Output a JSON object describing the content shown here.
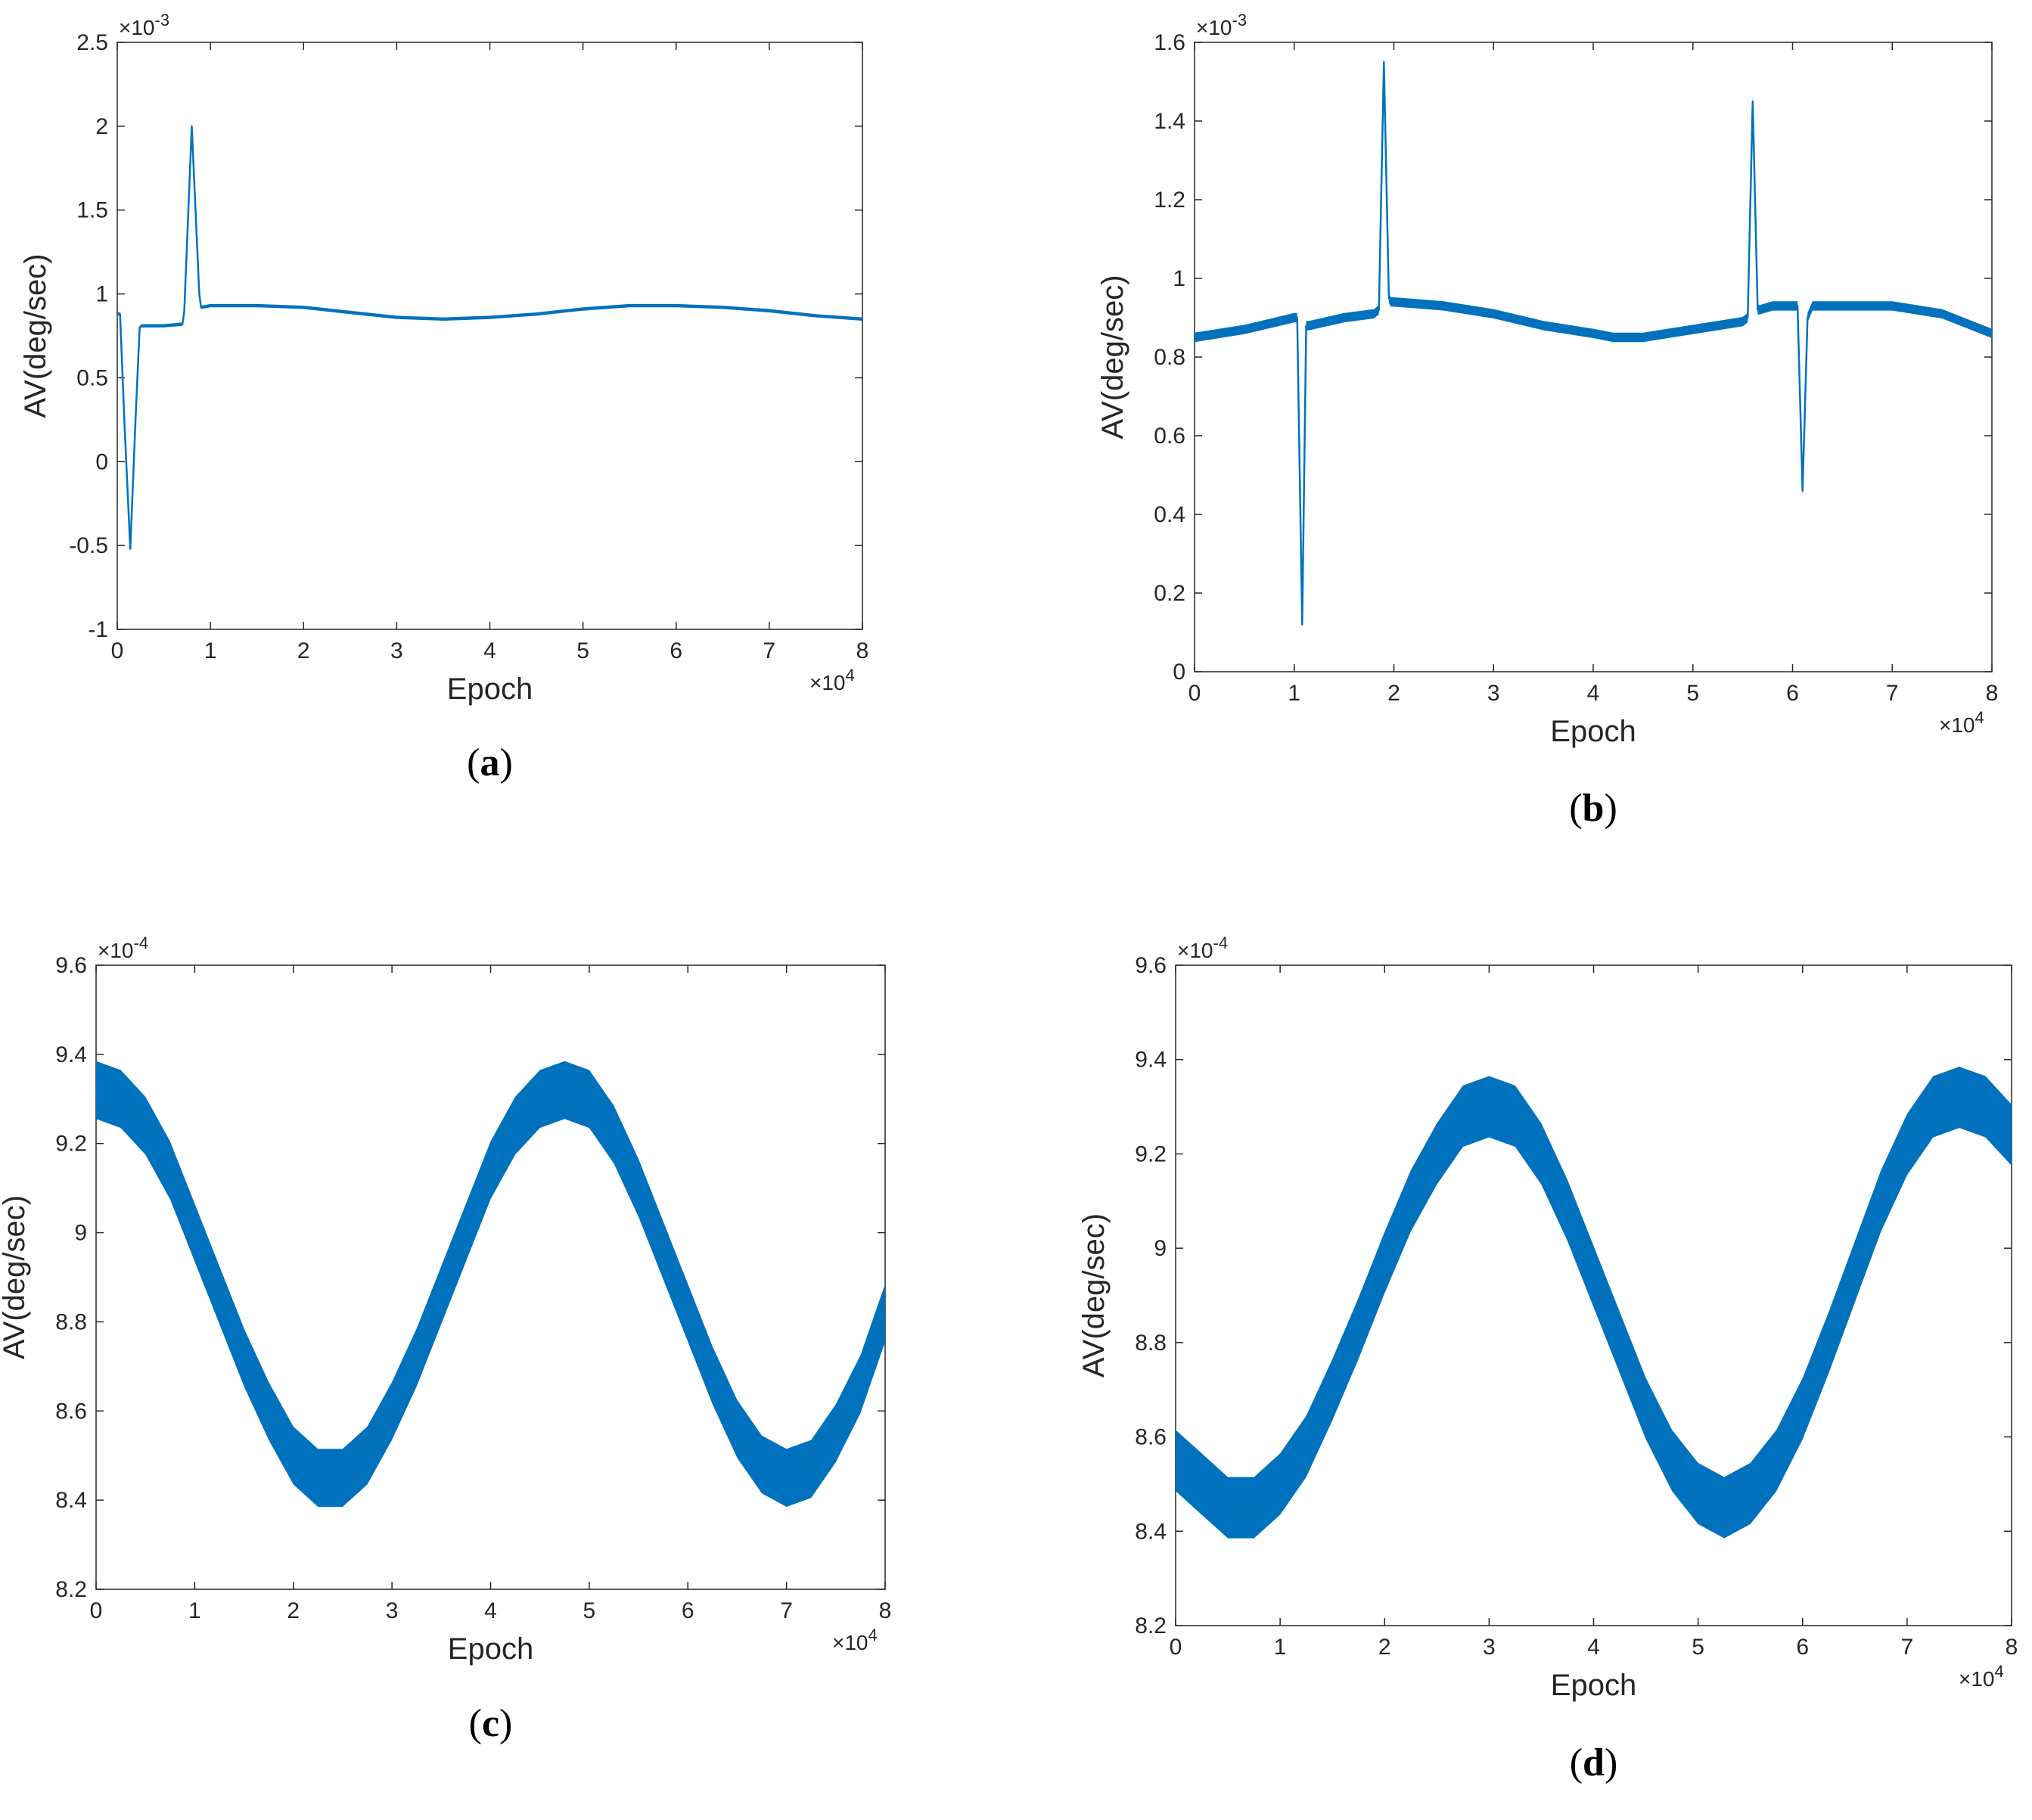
{
  "chart_data": [
    {
      "type": "line",
      "caption_letter": "a",
      "xlabel": "Epoch",
      "ylabel": "AV(deg/sec)",
      "x_multiplier": "×10",
      "x_multiplier_exp": "4",
      "y_multiplier": "×10",
      "y_multiplier_exp": "-3",
      "xlim": [
        0,
        8
      ],
      "ylim": [
        -1,
        2.5
      ],
      "xticks": [
        0,
        1,
        2,
        3,
        4,
        5,
        6,
        7,
        8
      ],
      "yticks": [
        -1,
        -0.5,
        0,
        0.5,
        1,
        1.5,
        2,
        2.5
      ],
      "series": [
        {
          "color": "#0072BD",
          "band": 0.01,
          "x": [
            0,
            0.03,
            0.08,
            0.14,
            0.2,
            0.24,
            0.26,
            0.5,
            0.7,
            0.72,
            0.8,
            0.88,
            0.9,
            1.0,
            1.5,
            2.0,
            2.5,
            3.0,
            3.5,
            4.0,
            4.5,
            5.0,
            5.5,
            6.0,
            6.5,
            7.0,
            7.5,
            8.0
          ],
          "y": [
            0.88,
            0.88,
            0.2,
            -0.52,
            0.3,
            0.8,
            0.81,
            0.81,
            0.82,
            0.9,
            2.0,
            1.0,
            0.92,
            0.93,
            0.93,
            0.92,
            0.89,
            0.86,
            0.85,
            0.86,
            0.88,
            0.91,
            0.93,
            0.93,
            0.92,
            0.9,
            0.87,
            0.85
          ]
        }
      ]
    },
    {
      "type": "line",
      "caption_letter": "b",
      "xlabel": "Epoch",
      "ylabel": "AV(deg/sec)",
      "x_multiplier": "×10",
      "x_multiplier_exp": "4",
      "y_multiplier": "×10",
      "y_multiplier_exp": "-3",
      "xlim": [
        0,
        8
      ],
      "ylim": [
        0,
        1.6
      ],
      "xticks": [
        0,
        1,
        2,
        3,
        4,
        5,
        6,
        7,
        8
      ],
      "yticks": [
        0,
        0.2,
        0.4,
        0.6,
        0.8,
        1,
        1.2,
        1.4,
        1.6
      ],
      "series": [
        {
          "color": "#0072BD",
          "band": 0.012,
          "x": [
            0,
            0.5,
            1.0,
            1.03,
            1.08,
            1.12,
            1.15,
            1.5,
            1.8,
            1.85,
            1.9,
            1.95,
            1.97,
            2.0,
            2.5,
            3.0,
            3.5,
            4.0,
            4.2,
            4.5,
            5.0,
            5.5,
            5.55,
            5.6,
            5.65,
            5.67,
            5.8,
            6.0,
            6.05,
            6.1,
            6.15,
            6.2,
            6.5,
            7.0,
            7.5,
            8.0
          ],
          "y": [
            0.85,
            0.87,
            0.9,
            0.9,
            0.12,
            0.88,
            0.88,
            0.9,
            0.91,
            0.92,
            1.55,
            0.95,
            0.94,
            0.94,
            0.93,
            0.91,
            0.88,
            0.86,
            0.85,
            0.85,
            0.87,
            0.89,
            0.9,
            1.45,
            0.92,
            0.92,
            0.93,
            0.93,
            0.93,
            0.46,
            0.9,
            0.93,
            0.93,
            0.93,
            0.91,
            0.86
          ]
        }
      ]
    },
    {
      "type": "line",
      "caption_letter": "c",
      "xlabel": "Epoch",
      "ylabel": "AV(deg/sec)",
      "x_multiplier": "×10",
      "x_multiplier_exp": "4",
      "y_multiplier": "×10",
      "y_multiplier_exp": "-4",
      "xlim": [
        0,
        8
      ],
      "ylim": [
        8.2,
        9.6
      ],
      "xticks": [
        0,
        1,
        2,
        3,
        4,
        5,
        6,
        7,
        8
      ],
      "yticks": [
        8.2,
        8.4,
        8.6,
        8.8,
        9,
        9.2,
        9.4,
        9.6
      ],
      "series": [
        {
          "color": "#0072BD",
          "band": 0.065,
          "x": [
            0,
            0.25,
            0.5,
            0.75,
            1.0,
            1.25,
            1.5,
            1.75,
            2.0,
            2.25,
            2.5,
            2.75,
            3.0,
            3.25,
            3.5,
            3.75,
            4.0,
            4.25,
            4.5,
            4.75,
            5.0,
            5.25,
            5.5,
            5.75,
            6.0,
            6.25,
            6.5,
            6.75,
            7.0,
            7.25,
            7.5,
            7.75,
            8.0
          ],
          "y": [
            9.32,
            9.3,
            9.24,
            9.14,
            9.0,
            8.86,
            8.72,
            8.6,
            8.5,
            8.45,
            8.45,
            8.5,
            8.6,
            8.72,
            8.86,
            9.0,
            9.14,
            9.24,
            9.3,
            9.32,
            9.3,
            9.22,
            9.1,
            8.96,
            8.82,
            8.68,
            8.56,
            8.48,
            8.45,
            8.47,
            8.55,
            8.66,
            8.82
          ]
        }
      ]
    },
    {
      "type": "line",
      "caption_letter": "d",
      "xlabel": "Epoch",
      "ylabel": "AV(deg/sec)",
      "x_multiplier": "×10",
      "x_multiplier_exp": "4",
      "y_multiplier": "×10",
      "y_multiplier_exp": "-4",
      "xlim": [
        0,
        8
      ],
      "ylim": [
        8.2,
        9.6
      ],
      "xticks": [
        0,
        1,
        2,
        3,
        4,
        5,
        6,
        7,
        8
      ],
      "yticks": [
        8.2,
        8.4,
        8.6,
        8.8,
        9,
        9.2,
        9.4,
        9.6
      ],
      "series": [
        {
          "color": "#0072BD",
          "band": 0.065,
          "x": [
            0,
            0.25,
            0.5,
            0.75,
            1.0,
            1.25,
            1.5,
            1.75,
            2.0,
            2.25,
            2.5,
            2.75,
            3.0,
            3.25,
            3.5,
            3.75,
            4.0,
            4.25,
            4.5,
            4.75,
            5.0,
            5.25,
            5.5,
            5.75,
            6.0,
            6.25,
            6.5,
            6.75,
            7.0,
            7.25,
            7.5,
            7.75,
            8.0
          ],
          "y": [
            8.55,
            8.5,
            8.45,
            8.45,
            8.5,
            8.58,
            8.7,
            8.83,
            8.97,
            9.1,
            9.2,
            9.28,
            9.3,
            9.28,
            9.2,
            9.08,
            8.94,
            8.8,
            8.66,
            8.55,
            8.48,
            8.45,
            8.48,
            8.55,
            8.66,
            8.8,
            8.95,
            9.1,
            9.22,
            9.3,
            9.32,
            9.3,
            9.24
          ]
        }
      ]
    }
  ]
}
